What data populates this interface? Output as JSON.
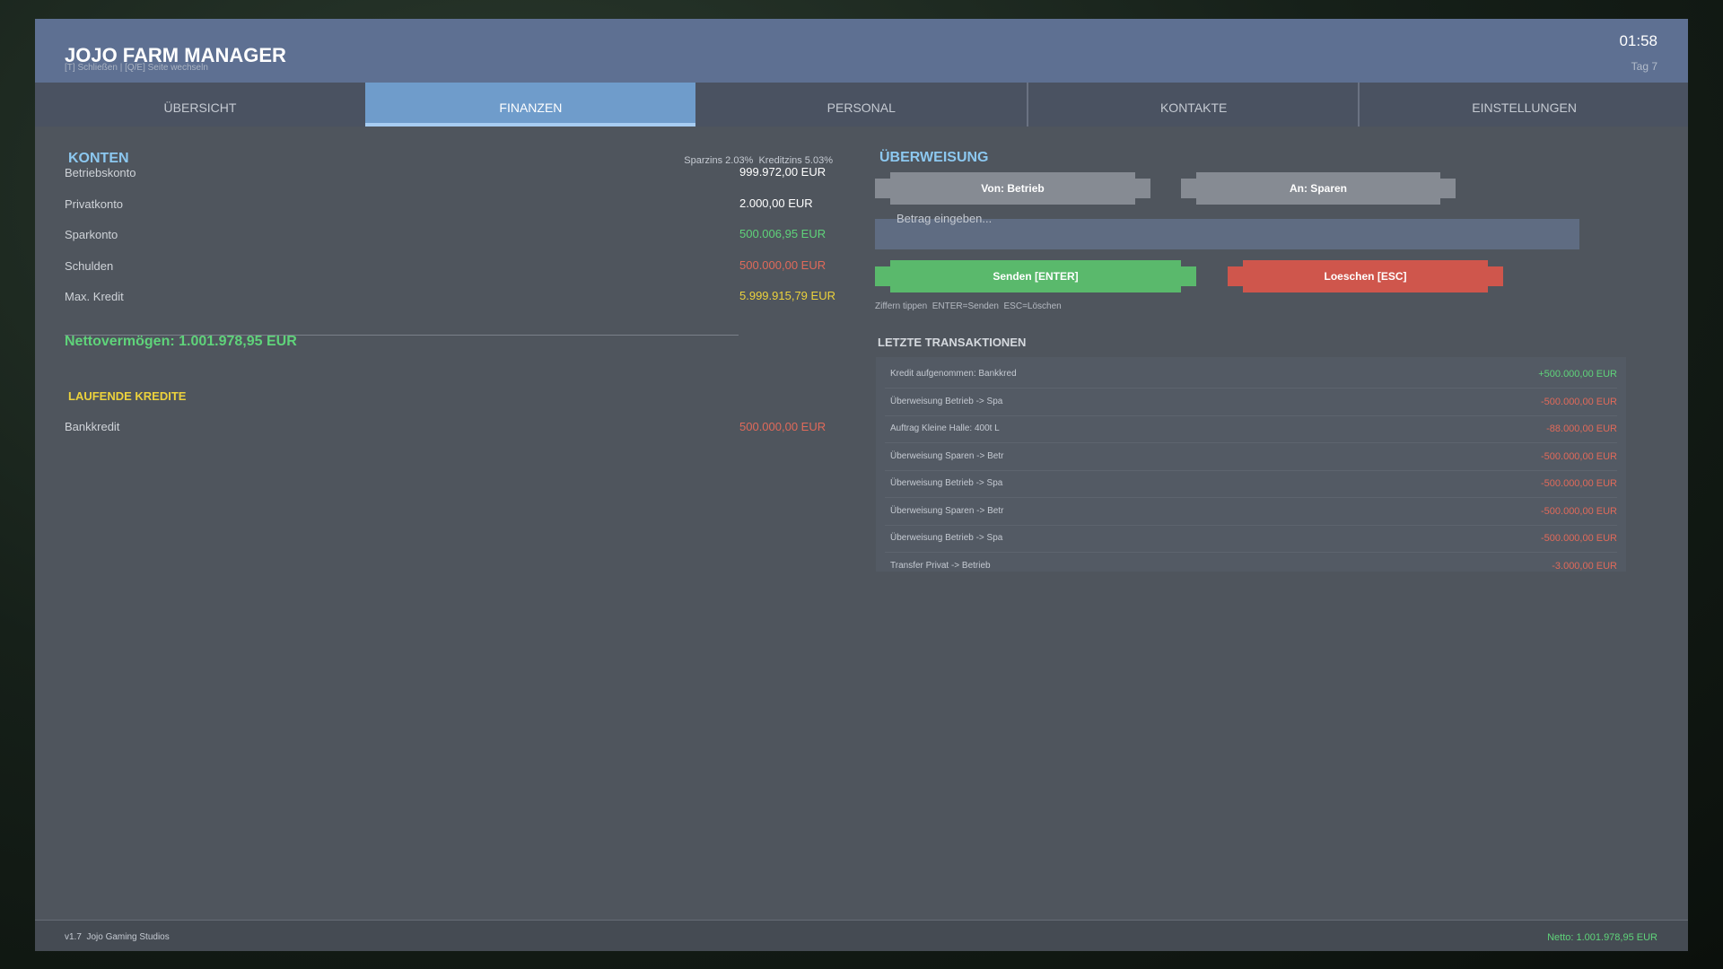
{
  "header": {
    "title": "JOJO FARM MANAGER",
    "hint": "[T] Schließen | [Q/E] Seite wechseln",
    "time": "01:58",
    "day": "Tag 7"
  },
  "tabs": [
    "ÜBERSICHT",
    "FINANZEN",
    "PERSONAL",
    "KONTAKTE",
    "EINSTELLUNGEN"
  ],
  "accounts": {
    "title": "KONTEN",
    "rates": "Sparzins 2.03%  Kreditzins 5.03%",
    "rows": [
      [
        "Betriebskonto",
        "999.972,00 EUR"
      ],
      [
        "Privatkonto",
        "2.000,00 EUR"
      ],
      [
        "Sparkonto",
        "500.006,95 EUR"
      ],
      [
        "Schulden",
        "500.000,00 EUR"
      ],
      [
        "Max. Kredit",
        "5.999.915,79 EUR"
      ]
    ],
    "net_worth": "Nettovermögen: 1.001.978,95 EUR"
  },
  "loans": {
    "title": "LAUFENDE KREDITE",
    "rows": [
      [
        "Bankkredit",
        "500.000,00 EUR"
      ]
    ]
  },
  "transfer": {
    "title": "ÜBERWEISUNG",
    "from": "Von: Betrieb",
    "to": "An: Sparen",
    "placeholder": "Betrag eingeben...",
    "send": "Senden [ENTER]",
    "clear": "Loeschen [ESC]",
    "hint": "Ziffern tippen  ENTER=Senden  ESC=Löschen"
  },
  "transactions": {
    "title": "LETZTE TRANSAKTIONEN",
    "rows": [
      [
        "Kredit aufgenommen: Bankkred",
        "+500.000,00 EUR"
      ],
      [
        "Überweisung Betrieb -> Spa",
        "-500.000,00 EUR"
      ],
      [
        "Auftrag Kleine Halle: 400t L",
        "-88.000,00 EUR"
      ],
      [
        "Überweisung Sparen -> Betr",
        "-500.000,00 EUR"
      ],
      [
        "Überweisung Betrieb -> Spa",
        "-500.000,00 EUR"
      ],
      [
        "Überweisung Sparen -> Betr",
        "-500.000,00 EUR"
      ],
      [
        "Überweisung Betrieb -> Spa",
        "-500.000,00 EUR"
      ],
      [
        "Transfer Privat -> Betrieb",
        "-3.000,00 EUR"
      ]
    ]
  },
  "footer": {
    "version": "v1.7  Jojo Gaming Studios",
    "net": "Netto: 1.001.978,95 EUR"
  }
}
